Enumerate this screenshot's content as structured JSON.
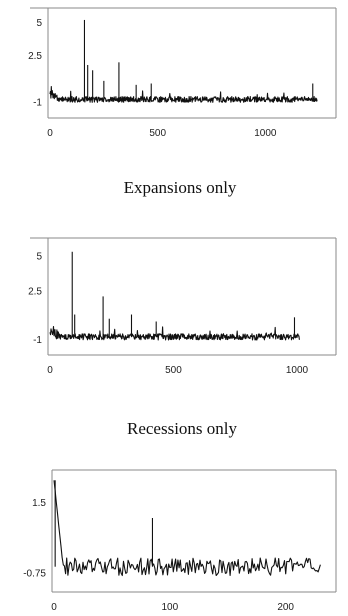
{
  "chart_data": [
    {
      "type": "line",
      "x_ticks": [
        0,
        500,
        1000
      ],
      "y_ticks": [
        -1,
        2.5,
        5
      ],
      "xlim": [
        0,
        1300
      ],
      "ylim": [
        -1.6,
        5.8
      ],
      "spikes": [
        {
          "x": 160,
          "y": 5.2
        },
        {
          "x": 175,
          "y": 1.8
        },
        {
          "x": 198,
          "y": 1.4
        },
        {
          "x": 250,
          "y": 0.6
        },
        {
          "x": 320,
          "y": 2.0
        },
        {
          "x": 400,
          "y": 0.3
        },
        {
          "x": 470,
          "y": 0.4
        },
        {
          "x": 1220,
          "y": 0.4
        }
      ],
      "baseline": -0.8,
      "n_points": 1240,
      "caption_below": "Expansions only"
    },
    {
      "type": "line",
      "x_ticks": [
        0,
        500,
        1000
      ],
      "y_ticks": [
        -1,
        2.5,
        5
      ],
      "xlim": [
        0,
        1150
      ],
      "ylim": [
        -1.6,
        6.0
      ],
      "spikes": [
        {
          "x": 90,
          "y": 5.3
        },
        {
          "x": 100,
          "y": 0.8
        },
        {
          "x": 215,
          "y": 2.1
        },
        {
          "x": 240,
          "y": 0.5
        },
        {
          "x": 330,
          "y": 0.8
        },
        {
          "x": 430,
          "y": 0.3
        },
        {
          "x": 990,
          "y": 0.6
        }
      ],
      "baseline": -0.8,
      "n_points": 1010,
      "caption_below": "Recessions only"
    },
    {
      "type": "line",
      "x_ticks": [
        0,
        100,
        200
      ],
      "y_ticks": [
        -0.75,
        1.5
      ],
      "xlim": [
        0,
        240
      ],
      "ylim": [
        -1.1,
        2.4
      ],
      "spikes": [
        {
          "x": 1,
          "y": 2.2
        },
        {
          "x": 85,
          "y": 1.0
        }
      ],
      "baseline": -0.55,
      "n_points": 230
    }
  ]
}
